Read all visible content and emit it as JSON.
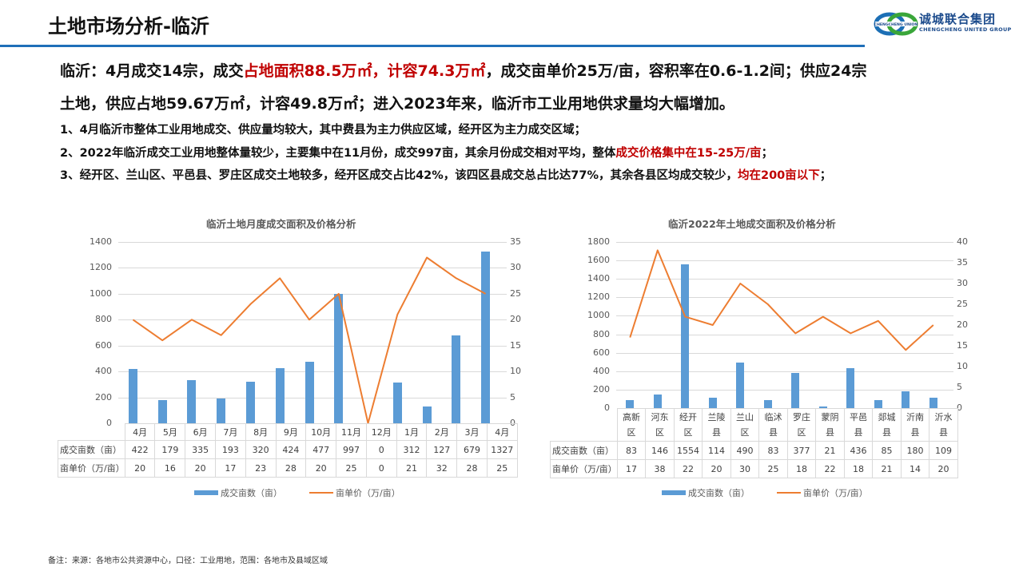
{
  "header": {
    "title": "土地市场分析-临沂",
    "logo": {
      "cn": "诚城联合集团",
      "en": "CHENGCHENG UNITED GROUP",
      "ring_text": "CHENGCHENG UNION"
    }
  },
  "summary": {
    "line1": {
      "a": "临沂：4月成交14宗，成交",
      "red": "占地面积88.5万㎡，计容74.3万㎡",
      "b": "，成交亩单价25万/亩，容积率在0.6-1.2间；供应24宗"
    },
    "line2": "土地，供应占地59.67万㎡，计容49.8万㎡；进入2023年来，临沂市工业用地供求量均大幅增加。"
  },
  "points": [
    {
      "text": "1、4月临沂市整体工业用地成交、供应量均较大，其中费县为主力供应区域，经开区为主力成交区域；",
      "red": "",
      "tail": ""
    },
    {
      "text": "2、2022年临沂成交工业用地整体量较少，主要集中在11月份，成交997亩，其余月份成交相对平均，整体",
      "red": "成交价格集中在15-25万/亩",
      "tail": "；"
    },
    {
      "text": "3、经开区、兰山区、平邑县、罗庄区成交土地较多，经开区成交占比42%，该四区县成交总占比达77%，其余各县区均成交较少，",
      "red": "均在200亩以下",
      "tail": "；"
    }
  ],
  "colors": {
    "bar": "#5b9bd5",
    "line": "#ed7d31",
    "accent_rule": "#1f6fb8",
    "highlight": "#c00000"
  },
  "chart_data": [
    {
      "type": "bar+line",
      "title": "临沂土地月度成交面积及价格分析",
      "categories": [
        "4月",
        "5月",
        "6月",
        "7月",
        "8月",
        "9月",
        "10月",
        "11月",
        "12月",
        "1月",
        "2月",
        "3月",
        "4月"
      ],
      "series": [
        {
          "name": "成交亩数（亩）",
          "type": "bar",
          "axis": "left",
          "values": [
            422,
            179,
            335,
            193,
            320,
            424,
            477,
            997,
            0,
            312,
            127,
            679,
            1327
          ]
        },
        {
          "name": "亩单价（万/亩）",
          "type": "line",
          "axis": "right",
          "values": [
            20,
            16,
            20,
            17,
            23,
            28,
            20,
            25,
            0,
            21,
            32,
            28,
            25
          ]
        }
      ],
      "left_axis": {
        "ticks": [
          "0",
          "200",
          "400",
          "600",
          "800",
          "1000",
          "1200",
          "1400"
        ],
        "ylim": [
          0,
          1400
        ]
      },
      "right_axis": {
        "ticks": [
          "0",
          "5",
          "10",
          "15",
          "20",
          "25",
          "30",
          "35"
        ],
        "ylim": [
          0,
          35
        ]
      },
      "grid": true,
      "data_table": true,
      "legend_position": "bottom"
    },
    {
      "type": "bar+line",
      "title": "临沂2022年土地成交面积及价格分析",
      "categories": [
        "高新区",
        "河东区",
        "经开区",
        "兰陵县",
        "兰山区",
        "临沭县",
        "罗庄区",
        "蒙阴县",
        "平邑县",
        "郯城县",
        "沂南县",
        "沂水县"
      ],
      "category_lines": [
        [
          "高新",
          "区"
        ],
        [
          "河东",
          "区"
        ],
        [
          "经开",
          "区"
        ],
        [
          "兰陵",
          "县"
        ],
        [
          "兰山",
          "区"
        ],
        [
          "临沭",
          "县"
        ],
        [
          "罗庄",
          "区"
        ],
        [
          "蒙阴",
          "县"
        ],
        [
          "平邑",
          "县"
        ],
        [
          "郯城",
          "县"
        ],
        [
          "沂南",
          "县"
        ],
        [
          "沂水",
          "县"
        ]
      ],
      "series": [
        {
          "name": "成交亩数（亩）",
          "type": "bar",
          "axis": "left",
          "values": [
            83,
            146,
            1554,
            114,
            490,
            83,
            377,
            21,
            436,
            85,
            180,
            109
          ]
        },
        {
          "name": "亩单价（万/亩）",
          "type": "line",
          "axis": "right",
          "values": [
            17,
            38,
            22,
            20,
            30,
            25,
            18,
            22,
            18,
            21,
            14,
            20
          ]
        }
      ],
      "left_axis": {
        "ticks": [
          "0",
          "200",
          "400",
          "600",
          "800",
          "1000",
          "1200",
          "1400",
          "1600",
          "1800"
        ],
        "ylim": [
          0,
          1800
        ]
      },
      "right_axis": {
        "ticks": [
          "0",
          "5",
          "10",
          "15",
          "20",
          "25",
          "30",
          "35",
          "40"
        ],
        "ylim": [
          0,
          40
        ]
      },
      "grid": true,
      "data_table": true,
      "legend_position": "bottom"
    }
  ],
  "footnote": "备注：来源：各地市公共资源中心，口径：工业用地，范围：各地市及县域区域"
}
